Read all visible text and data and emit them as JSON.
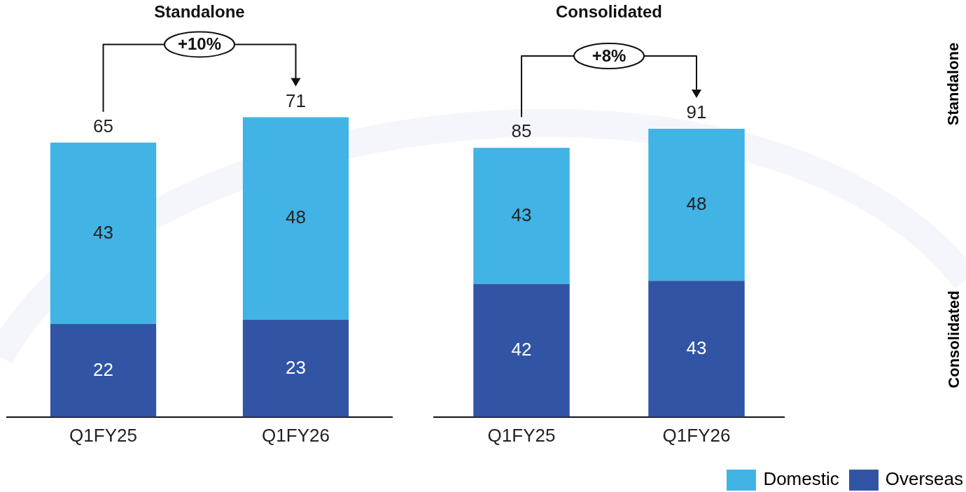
{
  "chart_data": [
    {
      "type": "bar",
      "title": "Standalone",
      "categories": [
        "Q1FY25",
        "Q1FY26"
      ],
      "stacked": true,
      "data_labels": true,
      "legend": "bottom right",
      "series": [
        {
          "name": "Overseas",
          "color": "#3155a4",
          "values": [
            22,
            23
          ]
        },
        {
          "name": "Domestic",
          "color": "#41b3e4",
          "values": [
            43,
            48
          ]
        }
      ],
      "totals": [
        "65",
        "71"
      ],
      "annotations": [
        "+10%"
      ]
    },
    {
      "type": "bar",
      "title": "Consolidated",
      "categories": [
        "Q1FY25",
        "Q1FY26"
      ],
      "stacked": true,
      "data_labels": true,
      "legend": "bottom right",
      "series": [
        {
          "name": "Overseas",
          "color": "#3155a4",
          "values": [
            42,
            43
          ]
        },
        {
          "name": "Domestic",
          "color": "#41b3e4",
          "values": [
            43,
            48
          ]
        }
      ],
      "totals": [
        "85",
        "91"
      ],
      "annotations": [
        "+8%",
        "Standalone",
        "Consolidated"
      ]
    }
  ]
}
